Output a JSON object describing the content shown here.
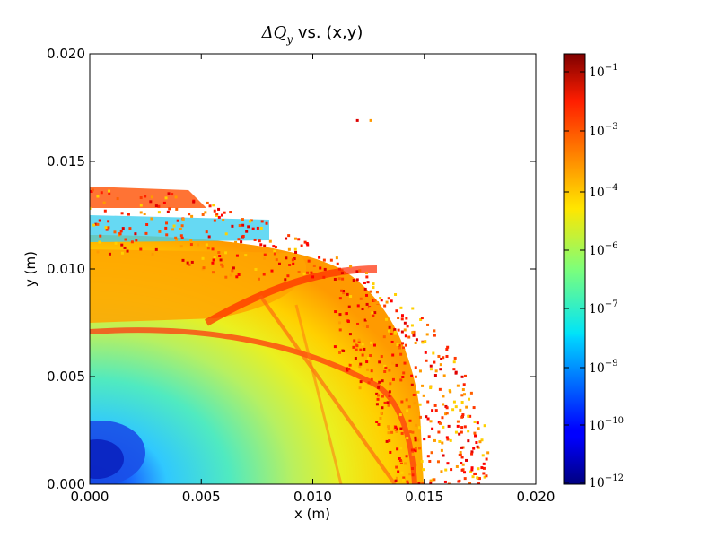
{
  "chart_data": {
    "type": "scatter",
    "title_math": "ΔQ",
    "title_sub": "y",
    "title_rest": " vs. (x,y)",
    "xlabel": "x (m)",
    "ylabel": "y (m)",
    "xlim": [
      0.0,
      0.02
    ],
    "ylim": [
      0.0,
      0.02
    ],
    "xticks": [
      "0.000",
      "0.005",
      "0.010",
      "0.015",
      "0.020"
    ],
    "yticks": [
      "0.000",
      "0.005",
      "0.010",
      "0.015",
      "0.020"
    ],
    "colorbar": {
      "scale": "log",
      "colormap": "jet",
      "ticks": [
        {
          "base": "10",
          "exp": "−1"
        },
        {
          "base": "10",
          "exp": "−3"
        },
        {
          "base": "10",
          "exp": "−4"
        },
        {
          "base": "10",
          "exp": "−6"
        },
        {
          "base": "10",
          "exp": "−7"
        },
        {
          "base": "10",
          "exp": "−9"
        },
        {
          "base": "10",
          "exp": "−10"
        },
        {
          "base": "10",
          "exp": "−12"
        }
      ]
    },
    "regions": [
      {
        "name": "core",
        "description": "dense tune-shift map filling quarter ellipse",
        "x_extent": 0.0148,
        "y_extent": 0.0112,
        "color_low": "#0000a0",
        "color_high": "#ff8000"
      },
      {
        "name": "scatter-edge",
        "x_range": [
          0.011,
          0.018
        ],
        "y_range": [
          0.0,
          0.013
        ],
        "color": "#ff2000"
      }
    ],
    "isolated_points": [
      {
        "x": 0.012,
        "y": 0.0169,
        "color": "#dd0000"
      },
      {
        "x": 0.0126,
        "y": 0.0169,
        "color": "#ff9900"
      }
    ],
    "grid": false
  }
}
